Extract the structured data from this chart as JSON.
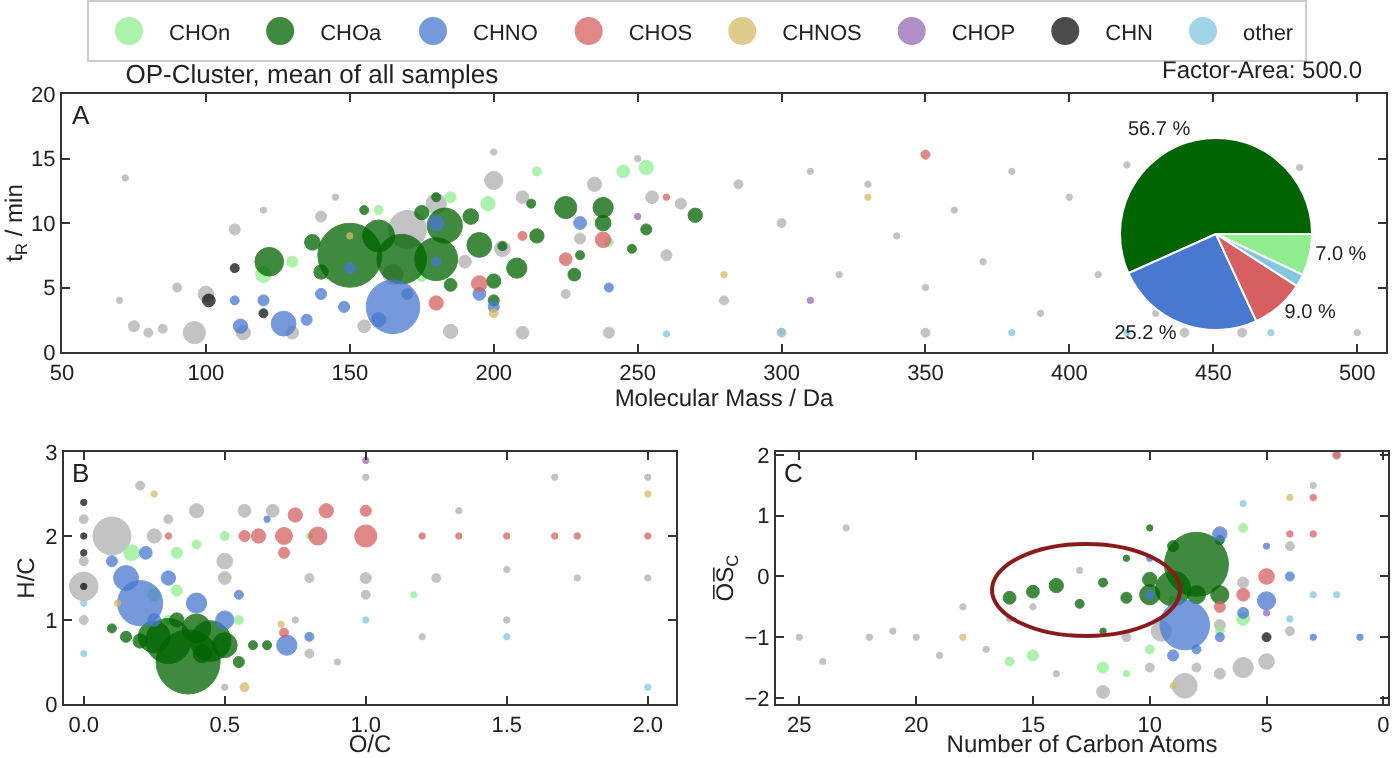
{
  "chart_data": [
    {
      "type": "bubble",
      "title": "OP-Cluster, mean of all samples",
      "xlabel": "Molecular Mass / Da",
      "ylabel": "t$_{R}$ / min",
      "annotations": [
        "Factor-Area: 500.0",
        "A"
      ],
      "xlim": [
        50,
        510
      ],
      "xticks": [
        50,
        100,
        150,
        200,
        250,
        300,
        350,
        400,
        450,
        500
      ],
      "ylim": [
        0,
        20
      ],
      "yticks": [
        0,
        5,
        10,
        15,
        20
      ],
      "legend": "top",
      "marker": "circle",
      "series": [
        {
          "color": "#b0b0b0",
          "x": [
            96,
            100,
            75,
            80,
            85,
            70,
            72,
            90,
            110,
            113,
            130,
            140,
            170,
            180,
            165,
            200,
            235,
            203,
            210,
            260,
            255,
            265,
            285,
            300,
            300,
            310,
            330,
            340,
            350,
            360,
            370,
            380,
            390,
            400,
            410,
            420,
            430,
            440,
            460,
            480,
            500,
            210,
            240,
            185,
            155,
            350,
            280,
            320,
            225,
            250,
            200,
            145,
            120,
            190,
            230
          ],
          "values": [
            1.5,
            4.5,
            2.0,
            1.5,
            1.8,
            4.0,
            13.5,
            5.0,
            9.5,
            1.5,
            1.5,
            10.5,
            9.5,
            11.5,
            6.0,
            13.3,
            13,
            8,
            12,
            7.5,
            12,
            11.5,
            13.0,
            10.0,
            1.5,
            14,
            13,
            9.0,
            5.0,
            11.0,
            7.0,
            14.0,
            3.0,
            12.0,
            6.0,
            14.5,
            3.0,
            1.5,
            1.5,
            14.3,
            1.5,
            1.5,
            1.5,
            1.6,
            2.0,
            1.5,
            4.0,
            6.0,
            4.5,
            15.0,
            15.5,
            12.0,
            11.0,
            7.0,
            8.8
          ],
          "sizes": [
            0.12,
            0.06,
            0.03,
            0.02,
            0.02,
            0.01,
            0.01,
            0.02,
            0.03,
            0.05,
            0.04,
            0.03,
            0.35,
            0.1,
            0.1,
            0.08,
            0.05,
            0.06,
            0.04,
            0.03,
            0.04,
            0.03,
            0.02,
            0.02,
            0.02,
            0.01,
            0.01,
            0.01,
            0.01,
            0.01,
            0.01,
            0.01,
            0.01,
            0.01,
            0.01,
            0.01,
            0.01,
            0.02,
            0.02,
            0.01,
            0.01,
            0.04,
            0.03,
            0.05,
            0.04,
            0.02,
            0.02,
            0.01,
            0.02,
            0.01,
            0.01,
            0.01,
            0.01,
            0.04,
            0.03
          ]
        },
        {
          "name": "CHOn",
          "color": "#90ee90",
          "x": [
            253,
            245,
            120,
            198,
            185,
            130,
            215,
            240,
            175,
            160
          ],
          "values": [
            14.3,
            14.0,
            6.0,
            11.5,
            12,
            7.0,
            14.0,
            8.5,
            5.8,
            11.0
          ],
          "sizes": [
            0.05,
            0.04,
            0.06,
            0.05,
            0.03,
            0.03,
            0.02,
            0.02,
            0.02,
            0.02
          ]
        },
        {
          "name": "CHOa",
          "color": "#006400",
          "x": [
            150,
            168,
            180,
            160,
            122,
            183,
            195,
            225,
            238,
            208,
            137,
            192,
            200,
            215,
            238,
            270,
            175,
            253,
            140,
            185,
            228,
            248,
            200,
            213,
            180,
            230,
            155,
            203
          ],
          "values": [
            7.5,
            7.2,
            7.2,
            9.0,
            7.0,
            9.8,
            8.3,
            11.2,
            11.2,
            6.5,
            8.5,
            10.5,
            5.5,
            9.0,
            10.0,
            10.6,
            10.8,
            9.5,
            6.2,
            5.2,
            6.0,
            8.0,
            4.0,
            11.5,
            12.0,
            7.5,
            11.0,
            8.2
          ],
          "sizes": [
            1.0,
            0.6,
            0.45,
            0.25,
            0.2,
            0.3,
            0.15,
            0.12,
            0.1,
            0.1,
            0.06,
            0.06,
            0.05,
            0.05,
            0.06,
            0.05,
            0.05,
            0.03,
            0.05,
            0.04,
            0.04,
            0.02,
            0.03,
            0.02,
            0.02,
            0.02,
            0.02,
            0.02
          ]
        },
        {
          "name": "CHNO",
          "color": "#4878d0",
          "x": [
            165,
            127,
            112,
            120,
            140,
            135,
            180,
            160,
            148,
            200,
            230,
            195,
            180,
            110,
            240,
            170,
            150
          ],
          "values": [
            3.5,
            2.2,
            2.0,
            4.0,
            4.5,
            2.5,
            10.0,
            2.5,
            3.5,
            3.5,
            10.0,
            4.5,
            7.0,
            4.0,
            5.0,
            4.5,
            6.5
          ],
          "sizes": [
            0.7,
            0.15,
            0.05,
            0.03,
            0.03,
            0.03,
            0.06,
            0.05,
            0.03,
            0.03,
            0.04,
            0.04,
            0.02,
            0.02,
            0.02,
            0.03,
            0.03
          ]
        },
        {
          "name": "CHOS",
          "color": "#d65f5f",
          "x": [
            238,
            195,
            180,
            225,
            350,
            210,
            260
          ],
          "values": [
            8.7,
            5.3,
            3.8,
            7.2,
            15.3,
            9.0,
            12
          ],
          "sizes": [
            0.06,
            0.06,
            0.05,
            0.04,
            0.02,
            0.02,
            0.01
          ]
        },
        {
          "name": "CHNOS",
          "color": "#d5bb67",
          "x": [
            200,
            280,
            330,
            150
          ],
          "values": [
            3.0,
            6.0,
            12.0,
            9.0
          ],
          "sizes": [
            0.02,
            0.01,
            0.01,
            0.01
          ]
        },
        {
          "name": "CHOP",
          "color": "#956cb4",
          "x": [
            250,
            310
          ],
          "values": [
            10.5,
            4.0
          ],
          "sizes": [
            0.01,
            0.01
          ]
        },
        {
          "name": "CHN",
          "color": "#111111",
          "x": [
            101,
            110,
            120
          ],
          "values": [
            4.0,
            6.5,
            3.0
          ],
          "sizes": [
            0.04,
            0.02,
            0.02
          ]
        },
        {
          "name": "other",
          "color": "#82c6e2",
          "x": [
            420,
            470,
            260,
            380,
            300
          ],
          "values": [
            1.5,
            1.5,
            1.4,
            1.5,
            1.6
          ],
          "sizes": [
            0.01,
            0.01,
            0.01,
            0.01,
            0.01
          ]
        }
      ]
    },
    {
      "type": "pie",
      "categories": [
        null,
        null,
        null,
        null,
        null
      ],
      "values": [
        7.0,
        56.7,
        25.2,
        9.0,
        2.1
      ],
      "colors": [
        "#90ee90",
        "#006400",
        "#4878d0",
        "#d65f5f",
        "#82c6e2"
      ],
      "value_labels": [
        "7.0 %",
        "56.7 %",
        "25.2 %",
        "9.0 %",
        null
      ]
    },
    {
      "type": "bubble",
      "xlabel": "O/C",
      "ylabel": "H/C",
      "annotations": [
        "B"
      ],
      "xlim": [
        -0.07,
        2.1
      ],
      "xticks": [
        {
          "value": 0,
          "label": "0.0"
        },
        {
          "value": 0.5,
          "label": "0.5"
        },
        {
          "value": 1,
          "label": "1.0"
        },
        {
          "value": 1.5,
          "label": "1.5"
        },
        {
          "value": 2,
          "label": "2.0"
        }
      ],
      "ylim": [
        0,
        3
      ],
      "yticks": [
        0,
        1,
        2,
        3
      ],
      "marker": "circle",
      "series": [
        {
          "color": "#b0b0b0",
          "x": [
            0.0,
            0.1,
            0.5,
            0.5,
            0.57,
            0.67,
            0.4,
            0.25,
            0.2,
            1.0,
            1.0,
            1.25,
            1.33,
            1.5,
            1.75,
            2.0,
            2.0,
            1.67,
            0.8,
            0.0,
            0.0,
            0.0,
            0.8,
            0.75,
            1.5,
            1.2,
            0.5,
            0.3,
            0.9,
            1.0
          ],
          "values": [
            1.4,
            2.0,
            1.7,
            1.5,
            2.3,
            2.3,
            2.3,
            2.0,
            2.6,
            1.5,
            1.3,
            1.5,
            2.3,
            1.6,
            1.5,
            1.5,
            2.7,
            2.7,
            1.5,
            1.0,
            1.7,
            2.2,
            0.6,
            1.0,
            1.0,
            0.8,
            0.2,
            2.2,
            0.5,
            2.7
          ],
          "sizes": [
            0.2,
            0.35,
            0.06,
            0.04,
            0.04,
            0.04,
            0.05,
            0.05,
            0.02,
            0.03,
            0.02,
            0.02,
            0.01,
            0.01,
            0.01,
            0.01,
            0.01,
            0.01,
            0.02,
            0.02,
            0.02,
            0.02,
            0.02,
            0.01,
            0.01,
            0.01,
            0.01,
            0.02,
            0.01,
            0.01
          ]
        },
        {
          "color": "#90ee90",
          "x": [
            0.17,
            0.25,
            0.33,
            0.33,
            0.5,
            0.4,
            1.17,
            0.3,
            0.55,
            0.8
          ],
          "values": [
            1.8,
            1.3,
            1.35,
            1.8,
            2.0,
            1.9,
            1.3,
            1.0,
            1.0,
            2.0
          ],
          "sizes": [
            0.06,
            0.04,
            0.03,
            0.03,
            0.02,
            0.02,
            0.01,
            0.02,
            0.02,
            0.01
          ]
        },
        {
          "color": "#006400",
          "x": [
            0.37,
            0.3,
            0.45,
            0.25,
            0.4,
            0.5,
            0.2,
            0.15,
            0.1,
            0.55,
            0.6,
            0.65,
            0.33,
            0.42
          ],
          "values": [
            0.5,
            0.75,
            0.75,
            0.8,
            0.9,
            0.7,
            0.75,
            0.8,
            0.9,
            0.5,
            0.7,
            0.7,
            1.0,
            0.6
          ],
          "sizes": [
            1.0,
            0.5,
            0.4,
            0.25,
            0.2,
            0.15,
            0.05,
            0.03,
            0.02,
            0.03,
            0.02,
            0.02,
            0.05,
            0.08
          ]
        },
        {
          "color": "#4878d0",
          "x": [
            0.2,
            0.15,
            0.4,
            0.5,
            0.72,
            0.22,
            0.3,
            0.1,
            0.55,
            0.8,
            0.65,
            0.25
          ],
          "values": [
            1.2,
            1.5,
            1.2,
            1.0,
            0.7,
            1.8,
            1.5,
            1.7,
            1.3,
            0.8,
            2.2,
            1.0
          ],
          "sizes": [
            0.5,
            0.15,
            0.1,
            0.08,
            0.1,
            0.04,
            0.05,
            0.03,
            0.02,
            0.02,
            0.01,
            0.04
          ]
        },
        {
          "color": "#d65f5f",
          "x": [
            1.0,
            0.83,
            0.71,
            0.62,
            0.57,
            0.75,
            0.86,
            1.0,
            0.71,
            0.71,
            2.0,
            1.33,
            1.5,
            1.67,
            1.2,
            1.75,
            0.3
          ],
          "values": [
            2.0,
            2.0,
            2.0,
            2.0,
            2.0,
            2.25,
            2.3,
            2.3,
            1.8,
            0.85,
            2.0,
            2.0,
            2.0,
            2.0,
            2.0,
            2.0,
            2.0
          ],
          "sizes": [
            0.12,
            0.08,
            0.07,
            0.05,
            0.03,
            0.05,
            0.05,
            0.03,
            0.03,
            0.02,
            0.01,
            0.01,
            0.01,
            0.01,
            0.01,
            0.01,
            0.01
          ]
        },
        {
          "color": "#d5bb67",
          "x": [
            0.57,
            0.25,
            0.7,
            2.0,
            0.12
          ],
          "values": [
            0.2,
            2.5,
            0.95,
            2.5,
            1.2
          ],
          "sizes": [
            0.02,
            0.01,
            0.01,
            0.01,
            0.01
          ]
        },
        {
          "color": "#956cb4",
          "x": [
            1.0
          ],
          "values": [
            2.9
          ],
          "sizes": [
            0.01
          ]
        },
        {
          "color": "#111111",
          "x": [
            0.0,
            0.0,
            0.0,
            0.0
          ],
          "values": [
            2.4,
            2.0,
            1.8,
            1.4
          ],
          "sizes": [
            0.01,
            0.01,
            0.01,
            0.01
          ]
        },
        {
          "color": "#82c6e2",
          "x": [
            0.0,
            0.0,
            1.5,
            2.0,
            1.0
          ],
          "values": [
            1.2,
            0.6,
            0.8,
            0.2,
            1.0
          ],
          "sizes": [
            0.01,
            0.01,
            0.01,
            0.01,
            0.01
          ]
        }
      ]
    },
    {
      "type": "bubble",
      "xlabel": "Number of Carbon Atoms",
      "ylabel": "O̅S̅$_{C}$",
      "annotations": [
        "C"
      ],
      "xlim": [
        26,
        -0.2
      ],
      "xticks": [
        25,
        20,
        15,
        10,
        5,
        0
      ],
      "ylim": [
        -2.1,
        2.05
      ],
      "yticks": [
        {
          "value": -2,
          "label": "−2"
        },
        {
          "value": -1,
          "label": "−1"
        },
        0,
        1,
        2
      ],
      "marker": "circle",
      "series": [
        {
          "color": "#b0b0b0",
          "x": [
            8.5,
            6,
            5,
            9.5,
            12,
            6,
            7,
            4,
            2,
            3,
            13,
            15,
            17,
            18,
            19,
            20,
            21,
            22,
            23,
            24,
            25,
            14,
            16,
            10,
            11,
            8,
            7,
            4
          ],
          "values": [
            -1.8,
            -1.5,
            -1.4,
            -0.9,
            -1.9,
            -0.1,
            -1.6,
            0.5,
            2.0,
            1.5,
            0.1,
            -0.5,
            -1.2,
            -0.5,
            -1.3,
            -1.0,
            -0.9,
            -1.0,
            0.8,
            -1.4,
            -1.0,
            -1.6,
            -0.7,
            -1.5,
            -1.0,
            -1.5,
            -0.8,
            -0.9
          ],
          "sizes": [
            0.15,
            0.1,
            0.06,
            0.1,
            0.04,
            0.03,
            0.03,
            0.02,
            0.02,
            0.01,
            0.01,
            0.01,
            0.01,
            0.01,
            0.01,
            0.01,
            0.01,
            0.01,
            0.01,
            0.01,
            0.01,
            0.01,
            0.01,
            0.02,
            0.02,
            0.02,
            0.03,
            0.02
          ]
        },
        {
          "color": "#90ee90",
          "x": [
            16,
            15,
            12,
            10,
            6,
            6,
            7,
            9,
            11
          ],
          "values": [
            -1.4,
            -1.3,
            -1.5,
            -1.2,
            -0.7,
            0.8,
            -0.9,
            -0.4,
            -1.6
          ],
          "sizes": [
            0.02,
            0.03,
            0.03,
            0.02,
            0.04,
            0.02,
            0.02,
            0.02,
            0.01
          ]
        },
        {
          "color": "#006400",
          "x": [
            8,
            9,
            10,
            14,
            15,
            16,
            12,
            11,
            13,
            10,
            7,
            9,
            10,
            7,
            11,
            12,
            8
          ],
          "values": [
            0.2,
            -0.2,
            -0.3,
            -0.15,
            -0.25,
            -0.35,
            -0.1,
            -0.35,
            -0.45,
            -0.05,
            -0.3,
            0.5,
            0.8,
            0.6,
            0.3,
            -0.9,
            -0.3
          ],
          "sizes": [
            1.0,
            0.3,
            0.1,
            0.05,
            0.04,
            0.04,
            0.02,
            0.03,
            0.02,
            0.05,
            0.08,
            0.03,
            0.01,
            0.02,
            0.01,
            0.01,
            0.08
          ]
        },
        {
          "color": "#4878d0",
          "x": [
            8.5,
            7,
            5,
            4,
            9,
            6,
            10,
            7,
            3,
            1,
            5,
            8,
            10
          ],
          "values": [
            -0.8,
            0.7,
            -0.4,
            0.0,
            -1.3,
            -0.6,
            -0.3,
            -1.0,
            -1.0,
            -1.0,
            0.5,
            -1.2,
            0.3
          ],
          "sizes": [
            0.6,
            0.05,
            0.08,
            0.02,
            0.03,
            0.03,
            0.02,
            0.02,
            0.01,
            0.01,
            0.01,
            0.02,
            0.01
          ]
        },
        {
          "color": "#d65f5f",
          "x": [
            5,
            6,
            7,
            3,
            2,
            4,
            3
          ],
          "values": [
            0.0,
            -0.3,
            -0.5,
            1.3,
            2.0,
            0.7,
            0.7
          ],
          "sizes": [
            0.06,
            0.04,
            0.03,
            0.01,
            0.01,
            0.01,
            0.01
          ]
        },
        {
          "color": "#d5bb67",
          "x": [
            18,
            9,
            4
          ],
          "values": [
            -1.0,
            -1.8,
            1.3
          ],
          "sizes": [
            0.01,
            0.01,
            0.01
          ]
        },
        {
          "color": "#956cb4",
          "x": [
            5
          ],
          "values": [
            -0.6
          ],
          "sizes": [
            0.01
          ]
        },
        {
          "color": "#111111",
          "x": [
            5
          ],
          "values": [
            -1.0
          ],
          "sizes": [
            0.02
          ]
        },
        {
          "color": "#82c6e2",
          "x": [
            2,
            3,
            4,
            6
          ],
          "values": [
            -0.3,
            -0.3,
            -0.7,
            1.2
          ],
          "sizes": [
            0.01,
            0.01,
            0.01,
            0.01
          ]
        }
      ]
    }
  ]
}
